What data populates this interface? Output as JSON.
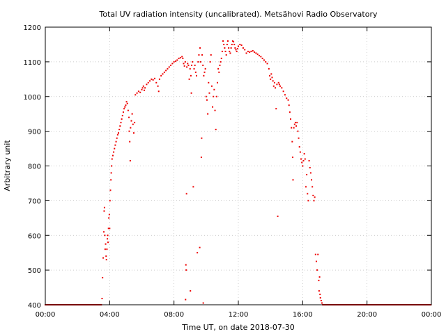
{
  "chart_data": {
    "type": "scatter",
    "title": "Total UV radiation intensity (uncalibrated). Metsähovi Radio Observatory",
    "xlabel": "Time UT, on date 2018-07-30",
    "ylabel": "Arbitrary unit",
    "xlim": [
      0,
      24
    ],
    "ylim": [
      400,
      1200
    ],
    "x_unit": "hours UT",
    "x_ticks": [
      0,
      4,
      8,
      12,
      16,
      20,
      24
    ],
    "x_tick_labels": [
      "00:00",
      "04:00",
      "08:00",
      "12:00",
      "16:00",
      "20:00",
      "00:00"
    ],
    "y_ticks": [
      400,
      500,
      600,
      700,
      800,
      900,
      1000,
      1100,
      1200
    ],
    "y_tick_labels": [
      "400",
      "500",
      "600",
      "700",
      "800",
      "900",
      "1000",
      "1100",
      "1200"
    ],
    "grid": true,
    "legend": false,
    "marker_color": "#ee0000",
    "baseline": 400,
    "baseline_segments": [
      [
        0,
        3.5
      ],
      [
        17.25,
        24
      ]
    ],
    "series": [
      {
        "name": "",
        "points": [
          [
            3.53,
            418
          ],
          [
            3.56,
            478
          ],
          [
            3.6,
            535
          ],
          [
            3.64,
            610
          ],
          [
            3.66,
            670
          ],
          [
            3.68,
            680
          ],
          [
            3.7,
            600
          ],
          [
            3.72,
            560
          ],
          [
            3.75,
            575
          ],
          [
            3.78,
            540
          ],
          [
            3.8,
            530
          ],
          [
            3.83,
            560
          ],
          [
            3.86,
            590
          ],
          [
            3.88,
            600
          ],
          [
            3.9,
            580
          ],
          [
            3.93,
            620
          ],
          [
            3.95,
            650
          ],
          [
            3.98,
            660
          ],
          [
            4.0,
            620
          ],
          [
            4.02,
            700
          ],
          [
            4.05,
            730
          ],
          [
            4.08,
            760
          ],
          [
            4.1,
            780
          ],
          [
            4.12,
            800
          ],
          [
            4.15,
            820
          ],
          [
            4.2,
            830
          ],
          [
            4.25,
            840
          ],
          [
            4.3,
            850
          ],
          [
            4.35,
            860
          ],
          [
            4.4,
            870
          ],
          [
            4.45,
            880
          ],
          [
            4.5,
            890
          ],
          [
            4.55,
            895
          ],
          [
            4.6,
            905
          ],
          [
            4.65,
            915
          ],
          [
            4.7,
            925
          ],
          [
            4.75,
            935
          ],
          [
            4.8,
            945
          ],
          [
            4.85,
            955
          ],
          [
            4.9,
            965
          ],
          [
            4.95,
            970
          ],
          [
            5.0,
            975
          ],
          [
            5.05,
            985
          ],
          [
            5.1,
            980
          ],
          [
            5.15,
            960
          ],
          [
            5.2,
            940
          ],
          [
            5.22,
            900
          ],
          [
            5.25,
            870
          ],
          [
            5.28,
            815
          ],
          [
            5.3,
            910
          ],
          [
            5.35,
            930
          ],
          [
            5.4,
            950
          ],
          [
            5.45,
            920
          ],
          [
            5.5,
            895
          ],
          [
            5.55,
            925
          ],
          [
            5.6,
            1005
          ],
          [
            5.7,
            1010
          ],
          [
            5.8,
            1015
          ],
          [
            5.9,
            1012
          ],
          [
            6.0,
            1020
          ],
          [
            6.05,
            1025
          ],
          [
            6.1,
            1030
          ],
          [
            6.15,
            1018
          ],
          [
            6.2,
            1025
          ],
          [
            6.3,
            1035
          ],
          [
            6.4,
            1040
          ],
          [
            6.5,
            1045
          ],
          [
            6.6,
            1050
          ],
          [
            6.7,
            1048
          ],
          [
            6.8,
            1052
          ],
          [
            6.9,
            1040
          ],
          [
            7.0,
            1030
          ],
          [
            7.05,
            1015
          ],
          [
            7.1,
            1050
          ],
          [
            7.2,
            1060
          ],
          [
            7.3,
            1065
          ],
          [
            7.4,
            1070
          ],
          [
            7.5,
            1075
          ],
          [
            7.6,
            1080
          ],
          [
            7.7,
            1085
          ],
          [
            7.8,
            1090
          ],
          [
            7.9,
            1095
          ],
          [
            8.0,
            1100
          ],
          [
            8.1,
            1102
          ],
          [
            8.2,
            1105
          ],
          [
            8.3,
            1110
          ],
          [
            8.4,
            1112
          ],
          [
            8.5,
            1115
          ],
          [
            8.55,
            1110
          ],
          [
            8.6,
            1095
          ],
          [
            8.65,
            1088
          ],
          [
            8.7,
            1100
          ],
          [
            8.72,
            415
          ],
          [
            8.74,
            515
          ],
          [
            8.76,
            500
          ],
          [
            8.78,
            720
          ],
          [
            8.8,
            1085
          ],
          [
            8.85,
            1095
          ],
          [
            8.9,
            1090
          ],
          [
            8.95,
            1050
          ],
          [
            9.0,
            1080
          ],
          [
            9.02,
            440
          ],
          [
            9.05,
            1060
          ],
          [
            9.08,
            1010
          ],
          [
            9.1,
            1090
          ],
          [
            9.15,
            1100
          ],
          [
            9.2,
            740
          ],
          [
            9.25,
            1080
          ],
          [
            9.3,
            1090
          ],
          [
            9.35,
            1070
          ],
          [
            9.4,
            1060
          ],
          [
            9.45,
            550
          ],
          [
            9.5,
            1100
          ],
          [
            9.55,
            1120
          ],
          [
            9.6,
            565
          ],
          [
            9.62,
            1140
          ],
          [
            9.65,
            1100
          ],
          [
            9.7,
            825
          ],
          [
            9.72,
            880
          ],
          [
            9.75,
            1120
          ],
          [
            9.8,
            1090
          ],
          [
            9.82,
            405
          ],
          [
            9.85,
            1060
          ],
          [
            9.9,
            1070
          ],
          [
            9.95,
            1080
          ],
          [
            10.0,
            1000
          ],
          [
            10.05,
            990
          ],
          [
            10.1,
            950
          ],
          [
            10.15,
            1040
          ],
          [
            10.2,
            1010
          ],
          [
            10.25,
            1100
          ],
          [
            10.3,
            1120
          ],
          [
            10.35,
            1030
          ],
          [
            10.4,
            970
          ],
          [
            10.45,
            1000
          ],
          [
            10.5,
            1020
          ],
          [
            10.55,
            960
          ],
          [
            10.6,
            905
          ],
          [
            10.65,
            1000
          ],
          [
            10.7,
            1040
          ],
          [
            10.75,
            1080
          ],
          [
            10.8,
            1070
          ],
          [
            10.85,
            1090
          ],
          [
            10.9,
            1100
          ],
          [
            10.95,
            1110
          ],
          [
            11.0,
            1130
          ],
          [
            11.05,
            1160
          ],
          [
            11.1,
            1150
          ],
          [
            11.15,
            1140
          ],
          [
            11.2,
            1130
          ],
          [
            11.25,
            1120
          ],
          [
            11.3,
            1150
          ],
          [
            11.35,
            1160
          ],
          [
            11.4,
            1140
          ],
          [
            11.45,
            1130
          ],
          [
            11.5,
            1125
          ],
          [
            11.55,
            1140
          ],
          [
            11.6,
            1150
          ],
          [
            11.65,
            1160
          ],
          [
            11.7,
            1158
          ],
          [
            11.75,
            1150
          ],
          [
            11.8,
            1140
          ],
          [
            11.85,
            1135
          ],
          [
            11.9,
            1130
          ],
          [
            11.95,
            1138
          ],
          [
            12.0,
            1145
          ],
          [
            12.1,
            1150
          ],
          [
            12.2,
            1148
          ],
          [
            12.3,
            1140
          ],
          [
            12.4,
            1135
          ],
          [
            12.5,
            1125
          ],
          [
            12.6,
            1130
          ],
          [
            12.7,
            1128
          ],
          [
            12.8,
            1130
          ],
          [
            12.9,
            1132
          ],
          [
            13.0,
            1128
          ],
          [
            13.1,
            1125
          ],
          [
            13.2,
            1122
          ],
          [
            13.3,
            1118
          ],
          [
            13.4,
            1115
          ],
          [
            13.5,
            1110
          ],
          [
            13.6,
            1105
          ],
          [
            13.7,
            1100
          ],
          [
            13.8,
            1095
          ],
          [
            13.9,
            1080
          ],
          [
            13.95,
            1060
          ],
          [
            14.0,
            1050
          ],
          [
            14.05,
            1065
          ],
          [
            14.1,
            1055
          ],
          [
            14.15,
            1045
          ],
          [
            14.2,
            1030
          ],
          [
            14.25,
            1040
          ],
          [
            14.3,
            1025
          ],
          [
            14.35,
            965
          ],
          [
            14.4,
            1035
          ],
          [
            14.45,
            655
          ],
          [
            14.5,
            1040
          ],
          [
            14.55,
            1035
          ],
          [
            14.6,
            1030
          ],
          [
            14.7,
            1025
          ],
          [
            14.8,
            1015
          ],
          [
            14.9,
            1005
          ],
          [
            15.0,
            995
          ],
          [
            15.1,
            990
          ],
          [
            15.15,
            975
          ],
          [
            15.2,
            955
          ],
          [
            15.25,
            935
          ],
          [
            15.3,
            910
          ],
          [
            15.35,
            870
          ],
          [
            15.38,
            825
          ],
          [
            15.4,
            760
          ],
          [
            15.45,
            910
          ],
          [
            15.5,
            920
          ],
          [
            15.55,
            925
          ],
          [
            15.6,
            915
          ],
          [
            15.65,
            925
          ],
          [
            15.7,
            900
          ],
          [
            15.75,
            880
          ],
          [
            15.8,
            855
          ],
          [
            15.85,
            840
          ],
          [
            15.9,
            820
          ],
          [
            15.95,
            810
          ],
          [
            16.0,
            800
          ],
          [
            16.05,
            815
          ],
          [
            16.1,
            835
          ],
          [
            16.15,
            820
          ],
          [
            16.2,
            740
          ],
          [
            16.25,
            775
          ],
          [
            16.3,
            720
          ],
          [
            16.35,
            700
          ],
          [
            16.4,
            815
          ],
          [
            16.45,
            795
          ],
          [
            16.5,
            780
          ],
          [
            16.55,
            760
          ],
          [
            16.6,
            740
          ],
          [
            16.65,
            715
          ],
          [
            16.7,
            700
          ],
          [
            16.75,
            710
          ],
          [
            16.8,
            545
          ],
          [
            16.85,
            525
          ],
          [
            16.9,
            500
          ],
          [
            16.95,
            545
          ],
          [
            17.0,
            470
          ],
          [
            17.02,
            440
          ],
          [
            17.05,
            480
          ],
          [
            17.08,
            430
          ],
          [
            17.1,
            420
          ],
          [
            17.15,
            412
          ],
          [
            17.2,
            405
          ]
        ]
      }
    ]
  }
}
